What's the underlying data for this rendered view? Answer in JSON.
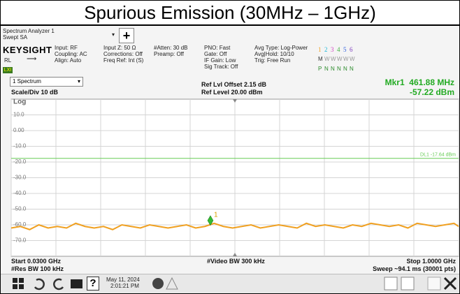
{
  "title": "Spurious Emission (30MHz – 1GHz)",
  "toolbar": {
    "app": "Spectrum Analyzer 1",
    "mode": "Swept SA",
    "add": "+"
  },
  "header": {
    "brand": "KEYSIGHT",
    "status": "RL",
    "lxi": "LXI",
    "settings": [
      [
        "Input: RF",
        "Coupling: AC",
        "Align: Auto"
      ],
      [
        "Input Z: 50 Ω",
        "Corrections: Off",
        "Freq Ref: Int (S)"
      ],
      [
        "#Atten: 30 dB",
        "Preamp: Off"
      ],
      [
        "PNO: Fast",
        "Gate: Off",
        "IF Gain: Low",
        "Sig Track: Off"
      ],
      [
        "Avg Type: Log-Power",
        "Avg|Hold: 10/10",
        "Trig: Free Run"
      ]
    ],
    "traces": {
      "numbers": [
        "1",
        "2",
        "3",
        "4",
        "5",
        "6"
      ],
      "colors": [
        "#f0a020",
        "#20b8d8",
        "#d040c0",
        "#40b040",
        "#3060e0",
        "#8040c0"
      ],
      "types": [
        "M",
        "W",
        "W",
        "W",
        "W",
        "W"
      ],
      "detectors": [
        "P",
        "N",
        "N",
        "N",
        "N",
        "N"
      ]
    }
  },
  "window": {
    "tab": "1 Spectrum",
    "scale": "Scale/Div 10 dB",
    "ref_offset": "Ref Lvl Offset 2.15 dB",
    "ref_level": "Ref Level 20.00 dBm",
    "marker_label": "Mkr1",
    "marker_freq": "461.88 MHz",
    "marker_amp": "-57.22 dBm"
  },
  "chart_data": {
    "type": "line",
    "ylabel": "Log",
    "ylim": [
      -80,
      20
    ],
    "yticks": [
      {
        "value": 10,
        "label": "10.0"
      },
      {
        "value": 0,
        "label": "0.00"
      },
      {
        "value": -10,
        "label": "-10.0"
      },
      {
        "value": -20,
        "label": "-20.0"
      },
      {
        "value": -30,
        "label": "-30.0"
      },
      {
        "value": -40,
        "label": "-40.0"
      },
      {
        "value": -50,
        "label": "-50.0"
      },
      {
        "value": -60,
        "label": "-60.0"
      },
      {
        "value": -70,
        "label": "-70.0"
      }
    ],
    "xlim": [
      0.03,
      1.0
    ],
    "xticks": [
      0.03,
      0.127,
      0.224,
      0.321,
      0.418,
      0.515,
      0.612,
      0.709,
      0.806,
      0.903,
      1.0
    ],
    "grid": true,
    "series": [
      {
        "color": "#f0a020",
        "x": [
          0.03,
          0.05,
          0.07,
          0.09,
          0.11,
          0.13,
          0.15,
          0.17,
          0.19,
          0.21,
          0.23,
          0.25,
          0.27,
          0.29,
          0.31,
          0.33,
          0.35,
          0.37,
          0.39,
          0.41,
          0.43,
          0.45,
          0.47,
          0.49,
          0.51,
          0.53,
          0.55,
          0.57,
          0.59,
          0.61,
          0.63,
          0.65,
          0.67,
          0.69,
          0.71,
          0.73,
          0.75,
          0.77,
          0.79,
          0.81,
          0.83,
          0.85,
          0.87,
          0.89,
          0.91,
          0.93,
          0.95,
          0.97,
          0.99,
          1.0
        ],
        "values": [
          -62,
          -61,
          -63,
          -60,
          -62,
          -61,
          -62,
          -59,
          -61,
          -62,
          -61,
          -63,
          -60,
          -61,
          -62,
          -60,
          -61,
          -62,
          -61,
          -60,
          -62,
          -61,
          -59,
          -61,
          -62,
          -61,
          -60,
          -62,
          -61,
          -60,
          -61,
          -62,
          -59,
          -61,
          -60,
          -61,
          -62,
          -60,
          -61,
          -59,
          -60,
          -61,
          -60,
          -62,
          -59,
          -60,
          -61,
          -60,
          -59,
          -61
        ]
      }
    ],
    "display_line": {
      "label": "DL1 -17.64 dBm",
      "value": -17.64,
      "color": "#66cc55"
    },
    "marker": {
      "label": "1",
      "x": 0.46188,
      "y": -57.22,
      "color": "#33bb33"
    }
  },
  "footer": {
    "start": "Start 0.0300 GHz",
    "rbw": "#Res BW 100 kHz",
    "vbw": "#Video BW 300 kHz",
    "stop": "Stop 1.0000 GHz",
    "sweep": "Sweep ~94.1 ms (30001 pts)"
  },
  "taskbar": {
    "help": "?",
    "date": "May 11, 2024",
    "time": "2:01:21 PM"
  }
}
